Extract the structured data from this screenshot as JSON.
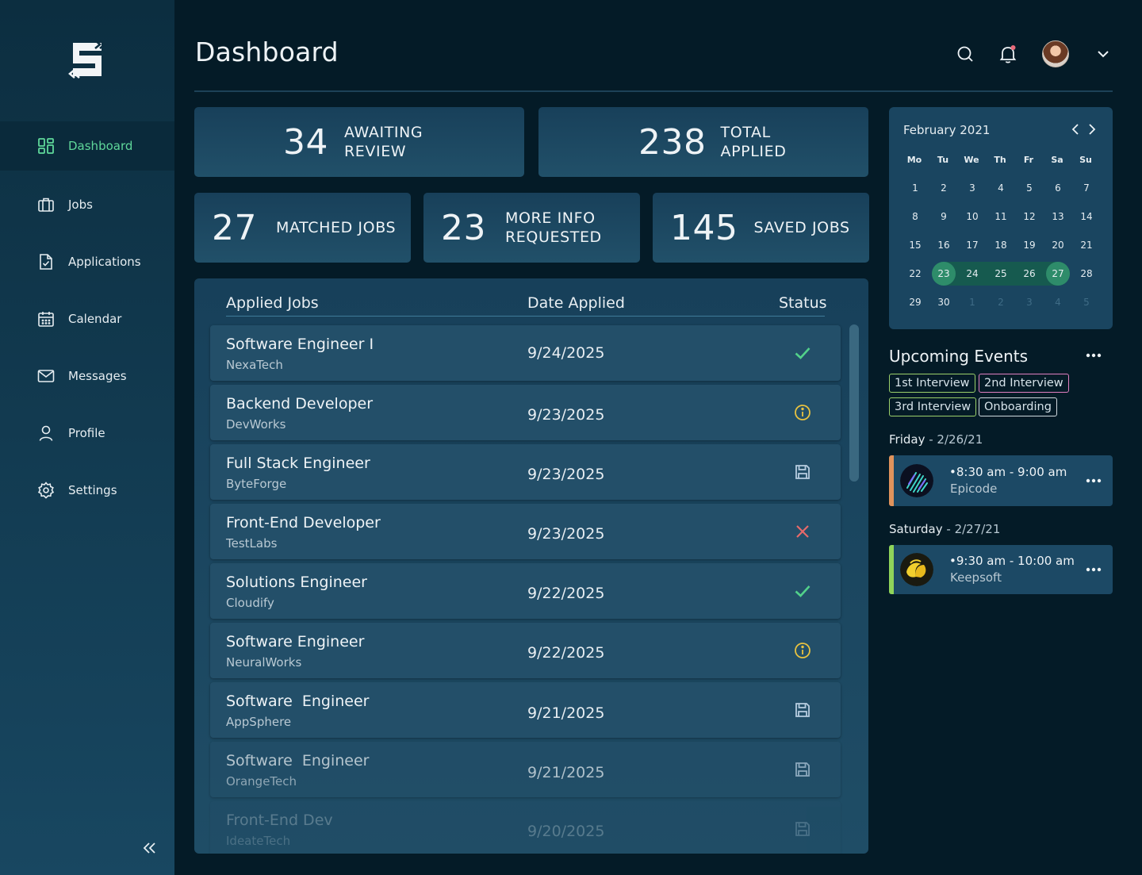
{
  "header": {
    "title": "Dashboard"
  },
  "sidebar": {
    "items": [
      {
        "label": "Dashboard",
        "icon": "dashboard-grid-icon",
        "active": true
      },
      {
        "label": "Jobs",
        "icon": "briefcase-icon"
      },
      {
        "label": "Applications",
        "icon": "document-check-icon"
      },
      {
        "label": "Calendar",
        "icon": "calendar-icon"
      },
      {
        "label": "Messages",
        "icon": "envelope-icon"
      },
      {
        "label": "Profile",
        "icon": "user-icon"
      },
      {
        "label": "Settings",
        "icon": "gear-icon"
      }
    ]
  },
  "stats": {
    "awaiting": {
      "value": "34",
      "line1": "AWAITING",
      "line2": "REVIEW"
    },
    "total": {
      "value": "238",
      "line1": "TOTAL",
      "line2": "APPLIED"
    },
    "matched": {
      "value": "27",
      "label": "MATCHED JOBS"
    },
    "moreinfo": {
      "value": "23",
      "line1": "MORE INFO",
      "line2": "REQUESTED"
    },
    "saved": {
      "value": "145",
      "label": "SAVED JOBS"
    }
  },
  "jobs": {
    "headers": {
      "job": "Applied Jobs",
      "date": "Date Applied",
      "status": "Status"
    },
    "rows": [
      {
        "title": "Software Engineer I",
        "company": "NexaTech",
        "date": "9/24/2025",
        "status": "accepted"
      },
      {
        "title": "Backend Developer",
        "company": "DevWorks",
        "date": "9/23/2025",
        "status": "more-info"
      },
      {
        "title": "Full Stack Engineer",
        "company": "ByteForge",
        "date": "9/23/2025",
        "status": "saved"
      },
      {
        "title": "Front-End Developer",
        "company": "TestLabs",
        "date": "9/23/2025",
        "status": "rejected"
      },
      {
        "title": "Solutions Engineer",
        "company": "Cloudify",
        "date": "9/22/2025",
        "status": "accepted"
      },
      {
        "title": "Software Engineer",
        "company": "NeuralWorks",
        "date": "9/22/2025",
        "status": "more-info"
      },
      {
        "title": "Software  Engineer",
        "company": "AppSphere",
        "date": "9/21/2025",
        "status": "saved"
      },
      {
        "title": "Software  Engineer",
        "company": "OrangeTech",
        "date": "9/21/2025",
        "status": "saved"
      },
      {
        "title": "Front-End Dev",
        "company": "IdeateTech",
        "date": "9/20/2025",
        "status": "saved"
      }
    ]
  },
  "calendar": {
    "title": "February 2021",
    "weekdays": [
      "Mo",
      "Tu",
      "We",
      "Th",
      "Fr",
      "Sa",
      "Su"
    ],
    "weeks": [
      [
        "1",
        "2",
        "3",
        "4",
        "5",
        "6",
        "7"
      ],
      [
        "8",
        "9",
        "10",
        "11",
        "12",
        "13",
        "14"
      ],
      [
        "15",
        "16",
        "17",
        "18",
        "19",
        "20",
        "21"
      ],
      [
        "22",
        "23",
        "24",
        "25",
        "26",
        "27",
        "28"
      ],
      [
        "29",
        "30",
        "1",
        "2",
        "3",
        "4",
        "5"
      ]
    ],
    "selected_range": [
      "23",
      "27"
    ]
  },
  "events": {
    "title": "Upcoming Events",
    "tags": [
      {
        "label": "1st Interview",
        "color": "#9bcf6a"
      },
      {
        "label": "2nd Interview",
        "color": "#e07fc0"
      },
      {
        "label": "3rd Interview",
        "color": "#9bcf6a"
      },
      {
        "label": "Onboarding",
        "color": "#cfd8de"
      }
    ],
    "days": [
      {
        "day": "Friday",
        "date": "2/26/21",
        "time": "•8:30 am - 9:00 am",
        "org": "Epicode",
        "accent": "#e0935c"
      },
      {
        "day": "Saturday",
        "date": "2/27/21",
        "time": "•9:30 am - 10:00 am",
        "org": "Keepsoft",
        "accent": "#8fd45a"
      }
    ]
  },
  "colors": {
    "accent_green": "#5fd79a",
    "status_accepted": "#52d18a",
    "status_more_info": "#e8c240",
    "status_saved": "#b7cde0",
    "status_rejected": "#e86a6a"
  }
}
